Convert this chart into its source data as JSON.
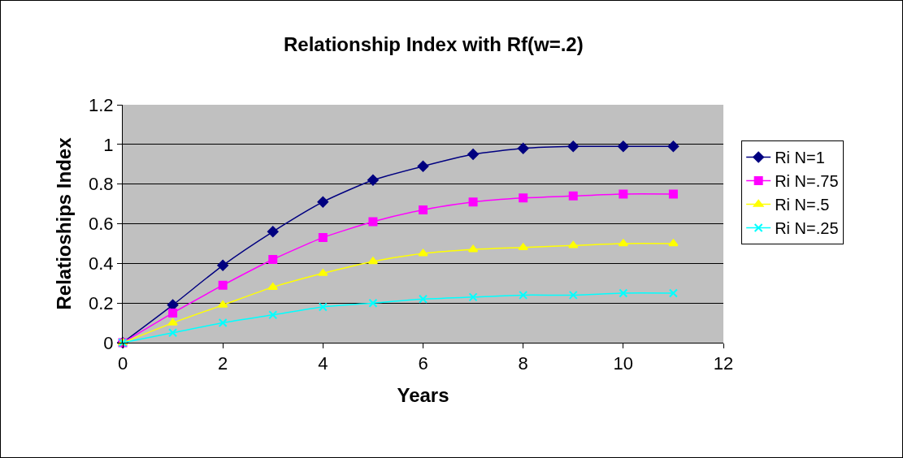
{
  "chart_data": {
    "type": "line",
    "title": "Relationship Index with Rf(w=.2)",
    "xlabel": "Years",
    "ylabel": "Relatioships Index",
    "x": [
      0,
      1,
      2,
      3,
      4,
      5,
      6,
      7,
      8,
      9,
      10,
      11
    ],
    "series": [
      {
        "name": "Ri N=1",
        "color": "#000080",
        "marker": "diamond",
        "values": [
          0,
          0.19,
          0.39,
          0.56,
          0.71,
          0.82,
          0.89,
          0.95,
          0.98,
          0.99,
          0.99,
          0.99
        ]
      },
      {
        "name": "Ri N=.75",
        "color": "#ff00ff",
        "marker": "square",
        "values": [
          0,
          0.15,
          0.29,
          0.42,
          0.53,
          0.61,
          0.67,
          0.71,
          0.73,
          0.74,
          0.75,
          0.75
        ]
      },
      {
        "name": "Ri N=.5",
        "color": "#ffff00",
        "marker": "triangle",
        "values": [
          0,
          0.1,
          0.19,
          0.28,
          0.35,
          0.41,
          0.45,
          0.47,
          0.48,
          0.49,
          0.5,
          0.5
        ]
      },
      {
        "name": "Ri N=.25",
        "color": "#00ffff",
        "marker": "cross",
        "values": [
          0,
          0.05,
          0.1,
          0.14,
          0.18,
          0.2,
          0.22,
          0.23,
          0.24,
          0.24,
          0.25,
          0.25
        ]
      }
    ],
    "xlim": [
      0,
      12
    ],
    "xticks": [
      0,
      2,
      4,
      6,
      8,
      10,
      12
    ],
    "ylim": [
      0,
      1.2
    ],
    "yticks": [
      0,
      0.2,
      0.4,
      0.6,
      0.8,
      1,
      1.2
    ],
    "grid": "y",
    "legend": "right",
    "line_style": "solid"
  }
}
